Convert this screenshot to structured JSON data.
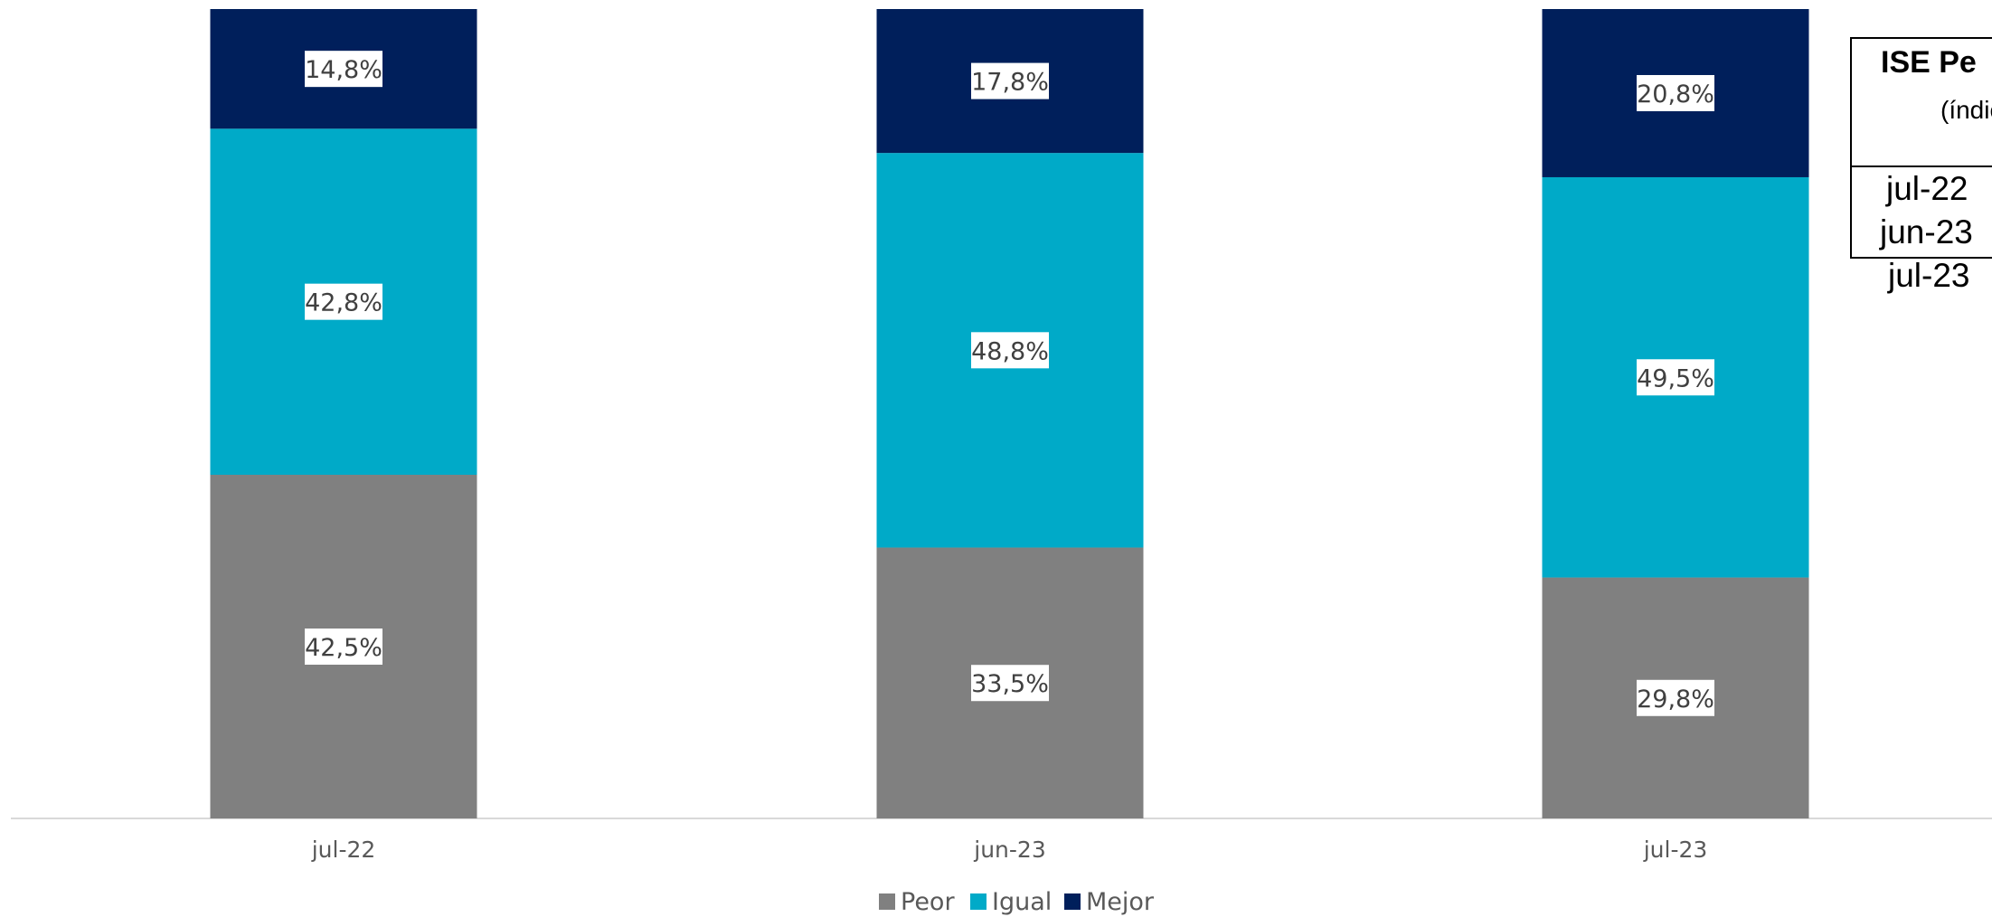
{
  "chart_data": {
    "type": "bar",
    "stacked": true,
    "categories": [
      "jul-22",
      "jun-23",
      "jul-23"
    ],
    "series": [
      {
        "name": "Peor",
        "values": [
          42.5,
          33.5,
          29.8
        ],
        "color": "#808080"
      },
      {
        "name": "Igual",
        "values": [
          42.8,
          48.8,
          49.5
        ],
        "color": "#00AAC8"
      },
      {
        "name": "Mejor",
        "values": [
          14.8,
          17.8,
          20.8
        ],
        "color": "#001F5B"
      }
    ],
    "data_labels": {
      "Peor": [
        "42,5%",
        "33,5%",
        "29,8%"
      ],
      "Igual": [
        "42,8%",
        "48,8%",
        "49,5%"
      ],
      "Mejor": [
        "14,8%",
        "17,8%",
        "20,8%"
      ]
    },
    "ylim": [
      0,
      100
    ],
    "grid": false,
    "legend": "bottom"
  },
  "side_table": {
    "title": "ISE Pe",
    "subtitle": "(índic",
    "rows": [
      "jul-22",
      "jun-23",
      "jul-23"
    ]
  }
}
